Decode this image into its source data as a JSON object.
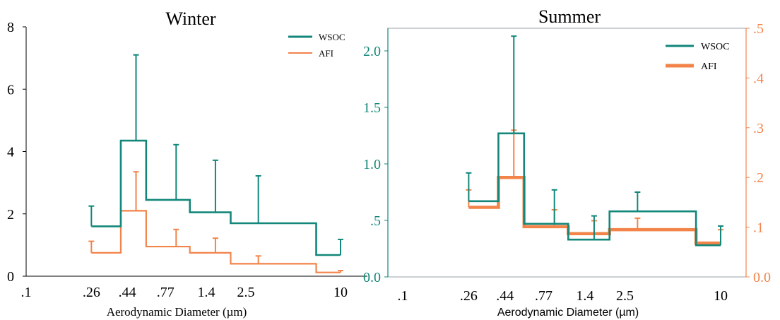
{
  "chart_data": [
    {
      "type": "line",
      "subtype": "step-histogram-with-error-bars",
      "title": "Winter",
      "xlabel": "Aerodynamic Diameter (µm)",
      "x_scale": "log",
      "x_ticks": [
        ".1",
        ".26",
        ".44",
        ".77",
        "1.4",
        "2.5",
        "10"
      ],
      "x_tick_values": [
        0.1,
        0.26,
        0.44,
        0.77,
        1.4,
        2.5,
        10
      ],
      "ylim": [
        0,
        8
      ],
      "y_ticks": [
        "0",
        "2",
        "4",
        "6",
        "8"
      ],
      "legend_position": "top-right",
      "series": [
        {
          "name": "WSOC",
          "color": "#12877a",
          "bins": [
            [
              0.26,
              0.4,
              1.6
            ],
            [
              0.4,
              0.58,
              4.35
            ],
            [
              0.58,
              1.1,
              2.45
            ],
            [
              1.1,
              2.0,
              2.05
            ],
            [
              2.0,
              7.0,
              1.7
            ],
            [
              7.0,
              10.0,
              0.68
            ]
          ],
          "error_bars": [
            [
              0.26,
              1.6,
              2.25
            ],
            [
              0.5,
              4.35,
              7.1
            ],
            [
              0.9,
              2.45,
              4.22
            ],
            [
              1.6,
              2.05,
              3.72
            ],
            [
              3.0,
              1.7,
              3.22
            ],
            [
              10.0,
              0.68,
              1.18
            ]
          ]
        },
        {
          "name": "AFI",
          "color": "#f2844a",
          "bins": [
            [
              0.26,
              0.4,
              0.75
            ],
            [
              0.4,
              0.58,
              2.1
            ],
            [
              0.58,
              1.1,
              0.95
            ],
            [
              1.1,
              2.0,
              0.75
            ],
            [
              2.0,
              7.0,
              0.4
            ],
            [
              7.0,
              10.0,
              0.12
            ]
          ],
          "error_bars": [
            [
              0.26,
              0.75,
              1.12
            ],
            [
              0.5,
              2.1,
              3.35
            ],
            [
              0.9,
              0.95,
              1.5
            ],
            [
              1.6,
              0.75,
              1.22
            ],
            [
              3.0,
              0.4,
              0.65
            ],
            [
              10.0,
              0.12,
              0.18
            ]
          ]
        }
      ]
    },
    {
      "type": "line",
      "subtype": "step-histogram-with-error-bars",
      "title": "Summer",
      "xlabel": "Aerodynamic Diameter (µm)",
      "x_scale": "log",
      "x_ticks": [
        ".1",
        ".26",
        ".44",
        ".77",
        "1.4",
        "2.5",
        "10"
      ],
      "x_tick_values": [
        0.1,
        0.26,
        0.44,
        0.77,
        1.4,
        2.5,
        10
      ],
      "ylim_left": [
        0,
        2.2
      ],
      "y_ticks_left": [
        "0.0",
        ".5",
        "1.0",
        "1.5",
        "2.0"
      ],
      "y_tick_values_left": [
        0,
        0.5,
        1.0,
        1.5,
        2.0
      ],
      "ylim_right": [
        0,
        0.5
      ],
      "y_ticks_right": [
        "0.0",
        ".1",
        ".2",
        ".3",
        ".4",
        ".5"
      ],
      "y_tick_values_right": [
        0,
        0.1,
        0.2,
        0.3,
        0.4,
        0.5
      ],
      "left_axis_color": "#12877a",
      "right_axis_color": "#f2844a",
      "legend_position": "top-right",
      "series": [
        {
          "name": "WSOC",
          "axis": "left",
          "color": "#12877a",
          "bins": [
            [
              0.26,
              0.4,
              0.67
            ],
            [
              0.4,
              0.58,
              1.27
            ],
            [
              0.58,
              1.1,
              0.47
            ],
            [
              1.1,
              2.0,
              0.33
            ],
            [
              2.0,
              7.0,
              0.58
            ],
            [
              7.0,
              10.0,
              0.28
            ]
          ],
          "error_bars": [
            [
              0.26,
              0.67,
              0.92
            ],
            [
              0.5,
              1.27,
              2.13
            ],
            [
              0.9,
              0.47,
              0.77
            ],
            [
              1.6,
              0.33,
              0.54
            ],
            [
              3.0,
              0.58,
              0.75
            ],
            [
              10.0,
              0.28,
              0.45
            ]
          ]
        },
        {
          "name": "AFI",
          "axis": "right",
          "color": "#f2844a",
          "bins": [
            [
              0.26,
              0.4,
              0.14
            ],
            [
              0.4,
              0.58,
              0.2
            ],
            [
              0.58,
              1.1,
              0.101
            ],
            [
              1.1,
              2.0,
              0.087
            ],
            [
              2.0,
              7.0,
              0.095
            ],
            [
              7.0,
              10.0,
              0.068
            ]
          ],
          "error_bars": [
            [
              0.26,
              0.14,
              0.175
            ],
            [
              0.5,
              0.2,
              0.295
            ],
            [
              0.9,
              0.101,
              0.135
            ],
            [
              1.6,
              0.087,
              0.113
            ],
            [
              3.0,
              0.095,
              0.118
            ],
            [
              10.0,
              0.068,
              0.095
            ]
          ]
        }
      ]
    }
  ]
}
